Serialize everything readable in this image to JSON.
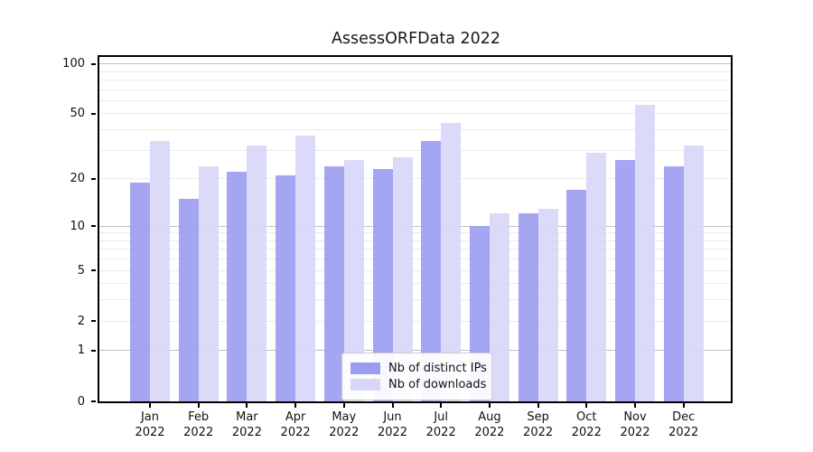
{
  "title": "AssessORFData 2022",
  "colors": {
    "ips_bar": "#9b9bef",
    "downloads_bar": "#d7d7f8",
    "grid_major": "#c2c2c2",
    "grid_minor": "#ebebeb",
    "axis": "#000000",
    "text": "#111111"
  },
  "legend": {
    "items": [
      {
        "label": "Nb of distinct IPs",
        "series": "ips"
      },
      {
        "label": "Nb of downloads",
        "series": "downloads"
      }
    ]
  },
  "y_axis": {
    "tick_labels": [
      "0",
      "1",
      "2",
      "5",
      "10",
      "20",
      "50",
      "100"
    ],
    "tick_values": [
      0,
      1,
      2,
      5,
      10,
      20,
      50,
      100
    ],
    "major_grid_values": [
      1,
      10,
      100
    ],
    "minor_grid_values": [
      2,
      3,
      4,
      5,
      6,
      7,
      8,
      9,
      20,
      30,
      40,
      50,
      60,
      70,
      80,
      90
    ]
  },
  "x_axis": {
    "months": [
      "Jan",
      "Feb",
      "Mar",
      "Apr",
      "May",
      "Jun",
      "Jul",
      "Aug",
      "Sep",
      "Oct",
      "Nov",
      "Dec"
    ],
    "year": "2022"
  },
  "chart_data": {
    "type": "bar",
    "title": "AssessORFData 2022",
    "categories": [
      "Jan 2022",
      "Feb 2022",
      "Mar 2022",
      "Apr 2022",
      "May 2022",
      "Jun 2022",
      "Jul 2022",
      "Aug 2022",
      "Sep 2022",
      "Oct 2022",
      "Nov 2022",
      "Dec 2022"
    ],
    "series": [
      {
        "name": "Nb of distinct IPs",
        "values": [
          19,
          15,
          22,
          21,
          24,
          23,
          34,
          10,
          12,
          17,
          26,
          24
        ]
      },
      {
        "name": "Nb of downloads",
        "values": [
          34,
          24,
          32,
          37,
          26,
          27,
          44,
          12,
          13,
          29,
          57,
          32
        ]
      }
    ],
    "yscale": "log1p",
    "ylim": [
      0,
      110
    ],
    "yticks": [
      0,
      1,
      2,
      5,
      10,
      20,
      50,
      100
    ],
    "grid": true,
    "legend_position": "lower center"
  }
}
